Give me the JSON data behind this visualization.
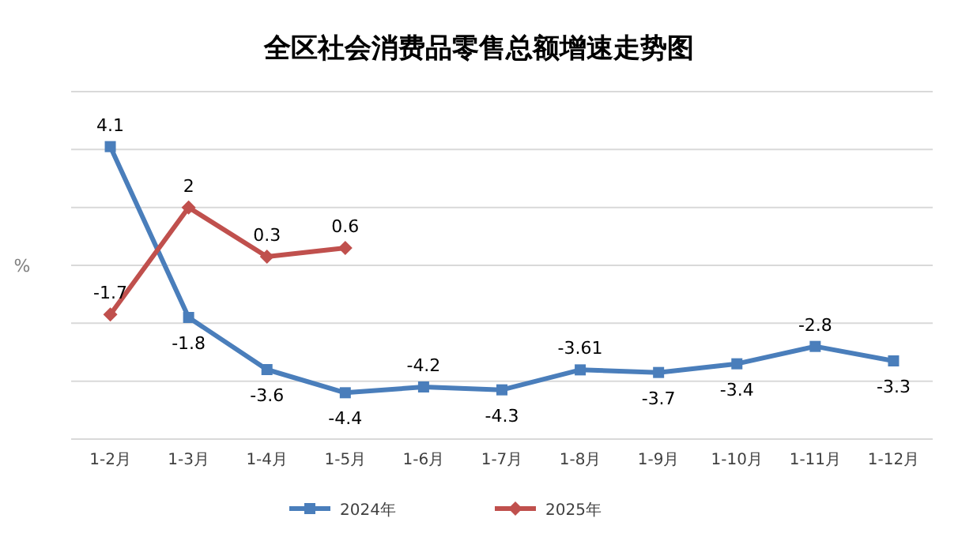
{
  "chart_data": {
    "type": "line",
    "title": "全区社会消费品零售总额增速走势图",
    "ylabel": "%",
    "categories": [
      "1-2月",
      "1-3月",
      "1-4月",
      "1-5月",
      "1-6月",
      "1-7月",
      "1-8月",
      "1-9月",
      "1-10月",
      "1-11月",
      "1-12月"
    ],
    "series": [
      {
        "name": "2024年",
        "color": "#4a7ebb",
        "marker": "square",
        "values": [
          4.1,
          -1.8,
          -3.6,
          -4.4,
          -4.2,
          -4.3,
          -3.61,
          -3.7,
          -3.4,
          -2.8,
          -3.3
        ]
      },
      {
        "name": "2025年",
        "color": "#c0504d",
        "marker": "diamond",
        "values": [
          -1.7,
          2,
          0.3,
          0.6,
          null,
          null,
          null,
          null,
          null,
          null,
          null
        ]
      }
    ],
    "ylim": [
      -6,
      6
    ],
    "yticks": [
      {
        "value": -6,
        "label": null
      },
      {
        "value": -4,
        "label": null
      },
      {
        "value": -2,
        "label": null
      },
      {
        "value": 0,
        "label": null
      },
      {
        "value": 2,
        "label": null
      },
      {
        "value": 4,
        "label": null
      },
      {
        "value": 6,
        "label": null
      }
    ],
    "tick_labels": "x",
    "grid": "y",
    "legend": "bottom",
    "data_labels": true
  }
}
